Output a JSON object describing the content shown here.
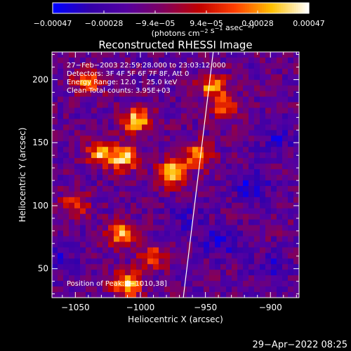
{
  "chart_data": {
    "type": "heatmap",
    "title": "Reconstructed RHESSI Image",
    "xlabel": "Heliocentric X (arcsec)",
    "ylabel": "Heliocentric Y (arcsec)",
    "xlim": [
      -1068,
      -878
    ],
    "ylim": [
      27,
      222
    ],
    "x_ticks": [
      -1050,
      -1000,
      -950,
      -900
    ],
    "x_tick_labels": [
      "−1050",
      "−1000",
      "−950",
      "−900"
    ],
    "y_ticks": [
      50,
      100,
      150,
      200
    ],
    "y_tick_labels": [
      "50",
      "100",
      "150",
      "200"
    ],
    "colorbar": {
      "range": [
        -0.00047,
        0.00047
      ],
      "tick_labels": [
        "−0.00047",
        "−0.00028",
        "−9.4e−05",
        "9.4e−05",
        "0.00028",
        "0.00047"
      ],
      "unit_label_main": "(photons cm",
      "unit_exp1": "−2",
      "unit_mid": " s",
      "unit_exp2": "−1",
      "unit_mid2": " asec",
      "unit_exp3": "−2",
      "unit_close": ")",
      "colors": [
        "#0000ff",
        "#3300aa",
        "#5500a0",
        "#800060",
        "#c00000",
        "#ff4000",
        "#ffc000",
        "#ffffff"
      ]
    },
    "annotations": [
      "27−Feb−2003 22:59:28.000 to 23:03:12.000",
      "Detectors: 3F 4F 5F 6F 7F 8F, Att 0",
      "Energy Range: 12.0 − 25.0 keV",
      "Clean     Total counts: 3.95E+03",
      "Position of Peak: [−1010,38]"
    ],
    "limb_line": [
      [
        -967,
        27
      ],
      [
        -944,
        222
      ]
    ],
    "hot_spots": [
      {
        "x": -1003,
        "y": 168,
        "level": 0.95
      },
      {
        "x": -1030,
        "y": 142,
        "level": 0.85
      },
      {
        "x": -1012,
        "y": 138,
        "level": 0.9
      },
      {
        "x": -975,
        "y": 126,
        "level": 0.95
      },
      {
        "x": -955,
        "y": 140,
        "level": 0.8
      },
      {
        "x": -1015,
        "y": 78,
        "level": 0.8
      },
      {
        "x": -1010,
        "y": 38,
        "level": 1.0
      },
      {
        "x": -1040,
        "y": 198,
        "level": 0.7
      },
      {
        "x": -945,
        "y": 195,
        "level": 0.75
      },
      {
        "x": -1050,
        "y": 100,
        "level": 0.6
      },
      {
        "x": -935,
        "y": 178,
        "level": 0.6
      },
      {
        "x": -990,
        "y": 60,
        "level": 0.55
      }
    ],
    "cold_spots": [
      {
        "x": -915,
        "y": 115,
        "level": 0.8
      },
      {
        "x": -938,
        "y": 72,
        "level": 0.85
      },
      {
        "x": -895,
        "y": 155,
        "level": 0.55
      },
      {
        "x": -1060,
        "y": 60,
        "level": 0.5
      },
      {
        "x": -900,
        "y": 50,
        "level": 0.6
      },
      {
        "x": -965,
        "y": 90,
        "level": 0.5
      }
    ]
  },
  "footer": {
    "date": "29−Apr−2022 08:25"
  }
}
